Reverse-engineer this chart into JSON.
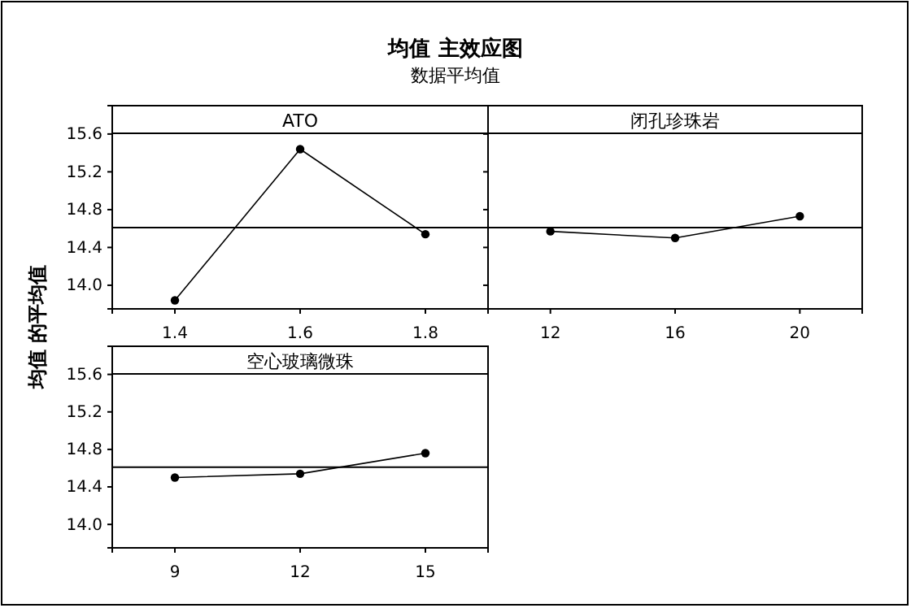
{
  "chart_data": [
    {
      "type": "line",
      "title": "均值 主效应图",
      "subtitle": "数据平均值",
      "ylabel": "均值 的平均值",
      "annotations": [
        "ATO"
      ],
      "x": [
        1.4,
        1.6,
        1.8
      ],
      "values": [
        13.84,
        15.44,
        14.54
      ],
      "color": "#000000",
      "marker": "circle",
      "xlim": [
        1.3,
        1.9
      ],
      "xticks": [
        1.4,
        1.6,
        1.8
      ],
      "ylim": [
        13.75,
        15.9
      ],
      "yticks": [
        {
          "value": 14,
          "label": "14.0"
        },
        14.4,
        14.8,
        15.2,
        15.6
      ],
      "ref_lines": [
        {
          "axis": "y",
          "value": 14.61
        }
      ]
    },
    {
      "type": "line",
      "annotations": [
        "闭孔珍珠岩"
      ],
      "x": [
        12,
        16,
        20
      ],
      "values": [
        14.57,
        14.5,
        14.73
      ],
      "color": "#000000",
      "marker": "circle",
      "xlim": [
        10,
        22
      ],
      "xticks": [
        12,
        16,
        20
      ],
      "ylim": [
        13.75,
        15.9
      ],
      "yticks": [
        14,
        14.4,
        14.8,
        15.2,
        15.6
      ],
      "tick_labels": "x",
      "ref_lines": [
        {
          "axis": "y",
          "value": 14.61
        }
      ]
    },
    {
      "type": "line",
      "annotations": [
        "空心玻璃微珠"
      ],
      "x": [
        9,
        12,
        15
      ],
      "values": [
        14.5,
        14.54,
        14.76
      ],
      "color": "#000000",
      "marker": "circle",
      "xlim": [
        7.5,
        16.5
      ],
      "xticks": [
        9,
        12,
        15
      ],
      "ylim": [
        13.75,
        15.9
      ],
      "yticks": [
        {
          "value": 14,
          "label": "14.0"
        },
        14.4,
        14.8,
        15.2,
        15.6
      ],
      "ref_lines": [
        {
          "axis": "y",
          "value": 14.61
        }
      ]
    }
  ]
}
